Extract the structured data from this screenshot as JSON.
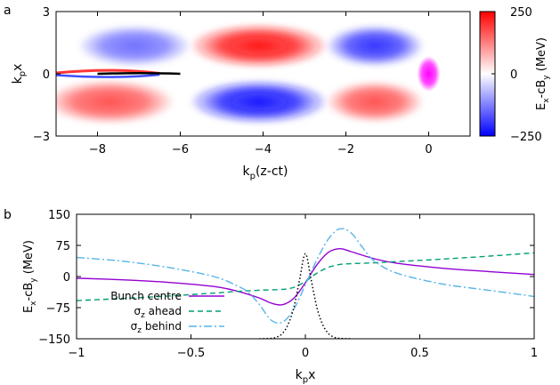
{
  "chart_data": [
    {
      "panel_label": "a",
      "type": "heatmap",
      "xlabel_main": "k",
      "xlabel_sub": "p",
      "xlabel_tail": "(z-ct)",
      "ylabel_main": "k",
      "ylabel_sub": "p",
      "ylabel_tail": "x",
      "xlim": [
        -9.0,
        1.0
      ],
      "ylim": [
        -3,
        3
      ],
      "xticks": [
        -8,
        -6,
        -4,
        -2,
        0
      ],
      "yticks": [
        3,
        0,
        -3
      ],
      "colorbar": {
        "label_main": "E",
        "label_sub1": "x",
        "label_mid": "-cB",
        "label_sub2": "y",
        "label_tail": "  (MeV)",
        "range": [
          -250,
          250
        ],
        "ticks": [
          250,
          0,
          -250
        ],
        "colors": [
          "#0000ff",
          "#ffffff",
          "#ff0000"
        ]
      },
      "lobes": [
        {
          "x": -7.1,
          "y": 1.35,
          "sx": 1.1,
          "sy": 0.75,
          "value": -140
        },
        {
          "x": -4.1,
          "y": 1.35,
          "sx": 1.35,
          "sy": 0.8,
          "value": 230
        },
        {
          "x": -1.3,
          "y": 1.35,
          "sx": 0.95,
          "sy": 0.75,
          "value": -200
        },
        {
          "x": -7.7,
          "y": -1.35,
          "sx": 1.25,
          "sy": 0.8,
          "value": 170
        },
        {
          "x": -4.1,
          "y": -1.35,
          "sx": 1.35,
          "sy": 0.8,
          "value": -230
        },
        {
          "x": -1.3,
          "y": -1.35,
          "sx": 0.95,
          "sy": 0.75,
          "value": 170
        }
      ],
      "bunch": {
        "x": 0.0,
        "y": 0.0,
        "sx": 0.28,
        "sy": 0.85,
        "color": "#ff00ff"
      },
      "filament": {
        "x_start": -9.0,
        "x_end": -6.4,
        "tip_x": -6.5,
        "color": "#000000"
      }
    },
    {
      "panel_label": "b",
      "type": "line",
      "xlabel_main": "k",
      "xlabel_sub": "p",
      "xlabel_tail": "x",
      "ylabel_main": "E",
      "ylabel_sub1": "x",
      "ylabel_mid": "-cB",
      "ylabel_sub2": "y",
      "ylabel_tail": "  (MeV)",
      "xlim": [
        -1,
        1
      ],
      "ylim": [
        -150,
        150
      ],
      "xticks": [
        -1,
        -0.5,
        0,
        0.5,
        1
      ],
      "yticks": [
        150,
        75,
        0,
        -75,
        -150
      ],
      "legend_position": "bottom-left",
      "series": [
        {
          "name": "Bunch centre",
          "color": "#9400d3",
          "dash": "",
          "x": [
            -1,
            -0.8,
            -0.6,
            -0.4,
            -0.3,
            -0.2,
            -0.15,
            -0.1,
            -0.05,
            0,
            0.05,
            0.1,
            0.15,
            0.2,
            0.3,
            0.4,
            0.6,
            0.8,
            1
          ],
          "y": [
            -4,
            -8,
            -14,
            -24,
            -35,
            -52,
            -64,
            -68,
            -52,
            -15,
            28,
            58,
            67,
            60,
            43,
            32,
            20,
            12,
            5
          ]
        },
        {
          "name_main": "σ",
          "name_sub": "z",
          "name_tail": " ahead",
          "color": "#009e73",
          "dash": "6,4",
          "x": [
            -1,
            -0.8,
            -0.6,
            -0.4,
            -0.3,
            -0.2,
            -0.1,
            -0.05,
            0,
            0.05,
            0.1,
            0.15,
            0.2,
            0.3,
            0.4,
            0.6,
            0.8,
            1
          ],
          "y": [
            -58,
            -53,
            -47,
            -40,
            -36,
            -33,
            -31,
            -26,
            -12,
            8,
            22,
            29,
            31,
            33,
            36,
            42,
            49,
            57
          ]
        },
        {
          "name_main": "σ",
          "name_sub": "z",
          "name_tail": " behind",
          "color": "#56b4e9",
          "dash": "9,3,2,3",
          "x": [
            -1,
            -0.8,
            -0.6,
            -0.4,
            -0.3,
            -0.25,
            -0.2,
            -0.15,
            -0.1,
            -0.05,
            0,
            0.05,
            0.1,
            0.15,
            0.2,
            0.25,
            0.3,
            0.4,
            0.6,
            0.8,
            1
          ],
          "y": [
            46,
            37,
            22,
            0,
            -22,
            -38,
            -68,
            -105,
            -110,
            -78,
            -20,
            40,
            90,
            115,
            105,
            70,
            38,
            8,
            -18,
            -33,
            -48
          ]
        },
        {
          "color": "#000000",
          "dash": "1.5,2.5",
          "x": [
            -0.2,
            -0.15,
            -0.125,
            -0.1,
            -0.075,
            -0.05,
            -0.025,
            0,
            0.025,
            0.05,
            0.075,
            0.1,
            0.125,
            0.15,
            0.2
          ],
          "y": [
            -150,
            -149,
            -146,
            -137,
            -115,
            -74,
            -7,
            55,
            -7,
            -74,
            -115,
            -137,
            -146,
            -149,
            -150
          ]
        }
      ]
    }
  ]
}
